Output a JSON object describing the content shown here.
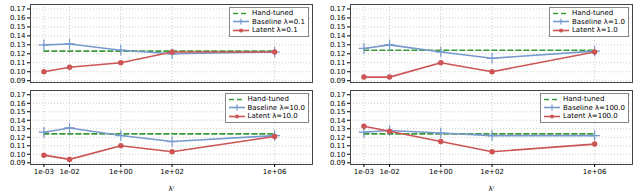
{
  "chart_data": [
    {
      "type": "line",
      "x": [
        0.001,
        0.01,
        1,
        100,
        1000000
      ],
      "series": [
        {
          "name": "Hand-tuned",
          "color": "#3a9a3a",
          "line_style": "dashed",
          "values": [
            0.123,
            0.123,
            0.123,
            0.123,
            0.123
          ]
        },
        {
          "name": "Baseline λ=0.1",
          "color": "#7799cc",
          "line_style": "solid",
          "marker": "plus",
          "values": [
            0.13,
            0.131,
            0.124,
            0.12,
            0.122
          ]
        },
        {
          "name": "Latent λ=0.1",
          "color": "#cc5555",
          "line_style": "solid",
          "marker": "circle",
          "values": [
            0.1,
            0.105,
            0.11,
            0.122,
            0.122
          ]
        }
      ],
      "log": "x",
      "xlim": [
        0.0003,
        30000000
      ],
      "ylim": [
        0.088,
        0.175
      ],
      "xticks": [
        {
          "value": 0.001,
          "label": "1e-03"
        },
        {
          "value": 0.01,
          "label": "1e-02"
        },
        {
          "value": 1,
          "label": "1e+00"
        },
        {
          "value": 100,
          "label": "1e+02"
        },
        {
          "value": 1000000,
          "label": "1e+06"
        }
      ],
      "yticks": [
        0.09,
        {
          "value": 0.1,
          "label": "0.10"
        },
        0.11,
        0.12,
        0.13,
        0.14,
        0.15,
        0.16,
        0.17
      ],
      "grid": true,
      "legend": "upper right",
      "tick_labels": "y"
    },
    {
      "type": "line",
      "x": [
        0.001,
        0.01,
        1,
        100,
        1000000
      ],
      "series": [
        {
          "name": "Hand-tuned",
          "color": "#3a9a3a",
          "line_style": "dashed",
          "values": [
            0.124,
            0.124,
            0.124,
            0.124,
            0.124
          ]
        },
        {
          "name": "Baseline λ=1.0",
          "color": "#7799cc",
          "line_style": "solid",
          "marker": "plus",
          "values": [
            0.126,
            0.13,
            0.122,
            0.115,
            0.123
          ]
        },
        {
          "name": "Latent λ=1.0",
          "color": "#cc5555",
          "line_style": "solid",
          "marker": "circle",
          "values": [
            0.094,
            0.094,
            0.11,
            0.1,
            0.122
          ]
        }
      ],
      "log": "x",
      "xlim": [
        0.0003,
        30000000
      ],
      "ylim": [
        0.088,
        0.175
      ],
      "xticks": [
        {
          "value": 0.001,
          "label": "1e-03"
        },
        {
          "value": 0.01,
          "label": "1e-02"
        },
        {
          "value": 1,
          "label": "1e+00"
        },
        {
          "value": 100,
          "label": "1e+02"
        },
        {
          "value": 1000000,
          "label": "1e+06"
        }
      ],
      "yticks": [
        0.09,
        {
          "value": 0.1,
          "label": "0.10"
        },
        0.11,
        0.12,
        0.13,
        0.14,
        0.15,
        0.16,
        0.17
      ],
      "grid": true,
      "legend": "upper right",
      "tick_labels": "y"
    },
    {
      "type": "line",
      "x": [
        0.001,
        0.01,
        1,
        100,
        1000000
      ],
      "series": [
        {
          "name": "Hand-tuned",
          "color": "#3a9a3a",
          "line_style": "dashed",
          "values": [
            0.124,
            0.124,
            0.124,
            0.124,
            0.124
          ]
        },
        {
          "name": "Baseline λ=10.0",
          "color": "#7799cc",
          "line_style": "solid",
          "marker": "plus",
          "values": [
            0.126,
            0.131,
            0.122,
            0.115,
            0.122
          ]
        },
        {
          "name": "Latent λ=10.0",
          "color": "#cc5555",
          "line_style": "solid",
          "marker": "circle",
          "values": [
            0.099,
            0.094,
            0.11,
            0.103,
            0.121
          ]
        }
      ],
      "log": "x",
      "xlim": [
        0.0003,
        30000000
      ],
      "ylim": [
        0.088,
        0.175
      ],
      "xticks": [
        {
          "value": 0.001,
          "label": "1e-03"
        },
        {
          "value": 0.01,
          "label": "1e-02"
        },
        {
          "value": 1,
          "label": "1e+00"
        },
        {
          "value": 100,
          "label": "1e+02"
        },
        {
          "value": 1000000,
          "label": "1e+06"
        }
      ],
      "yticks": [
        0.09,
        {
          "value": 0.1,
          "label": "0.10"
        },
        0.11,
        0.12,
        0.13,
        0.14,
        0.15,
        0.16,
        0.17
      ],
      "xlabel": "λʳ",
      "grid": true,
      "legend": "upper right"
    },
    {
      "type": "line",
      "x": [
        0.001,
        0.01,
        1,
        100,
        1000000
      ],
      "series": [
        {
          "name": "Hand-tuned",
          "color": "#3a9a3a",
          "line_style": "dashed",
          "values": [
            0.124,
            0.124,
            0.124,
            0.124,
            0.124
          ]
        },
        {
          "name": "Baseline λ=100.0",
          "color": "#7799cc",
          "line_style": "solid",
          "marker": "plus",
          "values": [
            0.126,
            0.128,
            0.125,
            0.122,
            0.122
          ]
        },
        {
          "name": "Latent λ=100.0",
          "color": "#cc5555",
          "line_style": "solid",
          "marker": "circle",
          "values": [
            0.133,
            0.127,
            0.115,
            0.103,
            0.112
          ]
        }
      ],
      "log": "x",
      "xlim": [
        0.0003,
        30000000
      ],
      "ylim": [
        0.088,
        0.175
      ],
      "xticks": [
        {
          "value": 0.001,
          "label": "1e-03"
        },
        {
          "value": 0.01,
          "label": "1e-02"
        },
        {
          "value": 1,
          "label": "1e+00"
        },
        {
          "value": 100,
          "label": "1e+02"
        },
        {
          "value": 1000000,
          "label": "1e+06"
        }
      ],
      "yticks": [
        0.09,
        {
          "value": 0.1,
          "label": "0.10"
        },
        0.11,
        0.12,
        0.13,
        0.14,
        0.15,
        0.16,
        0.17
      ],
      "xlabel": "λʳ",
      "grid": true,
      "legend": "upper right"
    }
  ]
}
